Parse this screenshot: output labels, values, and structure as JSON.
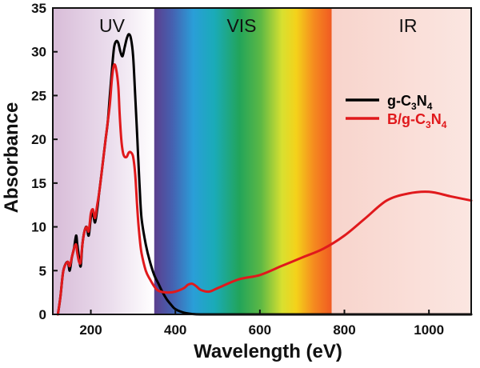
{
  "chart_data": {
    "type": "line",
    "xlabel": "Wavelength (eV)",
    "ylabel": "Absorbance",
    "xlim": [
      110,
      1100
    ],
    "ylim": [
      0,
      35
    ],
    "xticks": [
      200,
      400,
      600,
      800,
      1000
    ],
    "yticks": [
      0,
      5,
      10,
      15,
      20,
      25,
      30,
      35
    ],
    "grid": false,
    "legend_position": "right",
    "regions": [
      {
        "label": "UV",
        "from": 110,
        "to": 350
      },
      {
        "label": "VIS",
        "from": 350,
        "to": 770
      },
      {
        "label": "IR",
        "from": 770,
        "to": 1100
      }
    ],
    "series": [
      {
        "name": "g-C3N4",
        "color": "#000000",
        "x": [
          122,
          128,
          135,
          145,
          150,
          155,
          160,
          165,
          168,
          172,
          176,
          180,
          185,
          190,
          195,
          200,
          205,
          210,
          215,
          220,
          225,
          230,
          235,
          240,
          245,
          250,
          255,
          260,
          265,
          270,
          275,
          280,
          285,
          290,
          295,
          300,
          305,
          310,
          315,
          320,
          330,
          340,
          350,
          360,
          370,
          380,
          390,
          400,
          420,
          440,
          460,
          500,
          600,
          700,
          800,
          900,
          1000,
          1100
        ],
        "y": [
          0,
          2,
          5,
          6,
          5,
          6.5,
          7.5,
          9,
          8,
          6.5,
          5.5,
          8,
          9.5,
          10,
          9,
          11,
          11.5,
          10.5,
          12,
          14,
          16,
          18,
          20,
          22,
          25,
          28,
          30.5,
          31.2,
          31,
          30,
          29.5,
          30.5,
          31.5,
          32,
          31.5,
          29.5,
          25,
          20,
          15,
          11,
          8,
          6,
          4.5,
          3.5,
          2.5,
          1.7,
          1.1,
          0.6,
          0.2,
          0.05,
          0,
          0,
          0,
          0,
          0,
          0,
          0,
          0
        ]
      },
      {
        "name": "B/g-C3N4",
        "color": "#e0191c",
        "x": [
          122,
          128,
          135,
          145,
          150,
          155,
          160,
          165,
          168,
          172,
          176,
          180,
          185,
          190,
          195,
          200,
          205,
          210,
          215,
          220,
          225,
          230,
          235,
          240,
          245,
          250,
          255,
          260,
          265,
          268,
          272,
          276,
          280,
          285,
          290,
          295,
          300,
          305,
          310,
          315,
          320,
          330,
          340,
          350,
          360,
          380,
          400,
          420,
          430,
          440,
          450,
          460,
          480,
          500,
          550,
          600,
          650,
          700,
          750,
          800,
          850,
          900,
          950,
          1000,
          1050,
          1100
        ],
        "y": [
          0,
          2,
          5,
          6,
          5.5,
          6.5,
          7.5,
          8,
          7,
          6,
          6,
          8,
          9.5,
          10,
          9.5,
          11.5,
          12,
          11,
          12.5,
          14,
          16,
          18,
          20,
          22,
          24,
          27,
          28.5,
          28,
          26,
          23,
          20,
          18.5,
          18,
          18,
          18.5,
          18.5,
          18,
          16,
          12,
          9,
          7,
          5,
          4,
          3.2,
          2.7,
          2.5,
          2.6,
          3,
          3.4,
          3.5,
          3.2,
          2.8,
          2.6,
          3,
          4,
          4.5,
          5.5,
          6.5,
          7.5,
          9,
          11,
          13,
          13.8,
          14,
          13.5,
          13
        ]
      }
    ]
  },
  "legend": {
    "items": [
      {
        "label": "g-C",
        "sub1": "3",
        "mid": "N",
        "sub2": "4",
        "color": "#000000"
      },
      {
        "label": "B/g-C",
        "sub1": "3",
        "mid": "N",
        "sub2": "4",
        "color": "#e0191c"
      }
    ]
  }
}
